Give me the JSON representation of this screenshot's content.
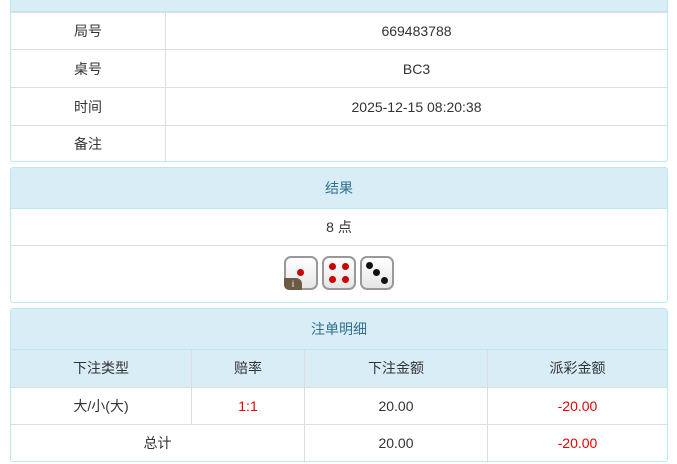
{
  "info": {
    "rows": [
      {
        "label": "局号",
        "value": "669483788"
      },
      {
        "label": "桌号",
        "value": "BC3"
      },
      {
        "label": "时间",
        "value": "2025-12-15 08:20:38"
      },
      {
        "label": "备注",
        "value": ""
      }
    ]
  },
  "result": {
    "title": "结果",
    "points": "8 点",
    "dice": [
      {
        "value": 1,
        "color": "red"
      },
      {
        "value": 4,
        "color": "red"
      },
      {
        "value": 3,
        "color": "black"
      }
    ],
    "info_badge": "i"
  },
  "bets": {
    "title": "注单明细",
    "headers": [
      "下注类型",
      "赔率",
      "下注金额",
      "派彩金额"
    ],
    "rows": [
      {
        "type": "大/小(大)",
        "odds": "1:1",
        "amount": "20.00",
        "payout": "-20.00"
      }
    ],
    "total": {
      "label": "总计",
      "amount": "20.00",
      "payout": "-20.00"
    }
  },
  "colors": {
    "header_bg": "#d9edf7",
    "negative": "#e00000"
  }
}
